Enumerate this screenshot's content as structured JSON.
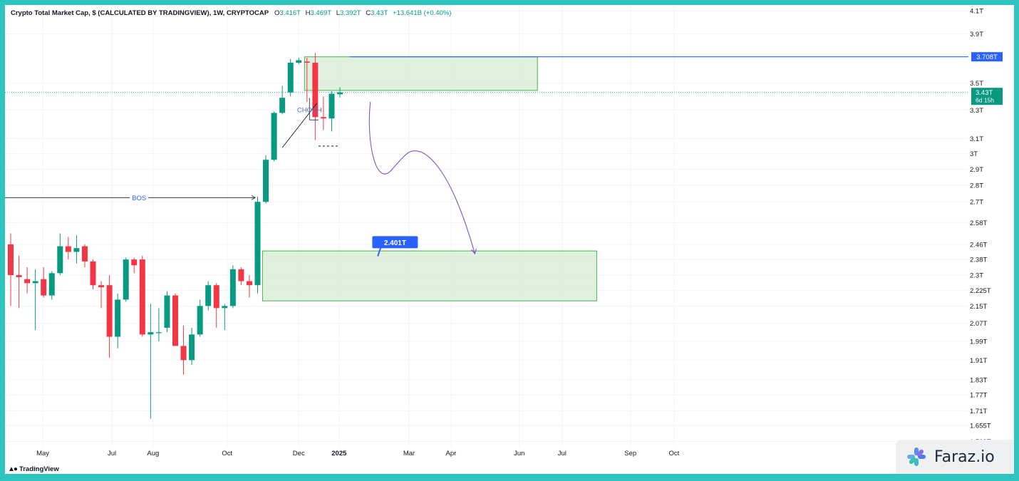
{
  "header": {
    "title": "Crypto Total Market Cap, $ (CALCULATED BY TRADINGVIEW), 1W, CRYPTOCAP",
    "o_label": "O",
    "o_value": "3.416T",
    "h_label": "H",
    "h_value": "3.469T",
    "l_label": "L",
    "l_value": "3.392T",
    "c_label": "C",
    "c_value": "3.43T",
    "change": "+13.641B (+0.40%)"
  },
  "footer": {
    "brand": "TradingView"
  },
  "watermark": {
    "text": "Faraz.io"
  },
  "colors": {
    "up": "#089981",
    "down": "#f23645",
    "zone_fill": "#d9efd6",
    "zone_stroke": "#4caf50",
    "price_line": "#26a69a",
    "level_line": "#2962ff",
    "arrow": "#7e57c2",
    "frame": "#2ec4c0"
  },
  "chart_data": {
    "type": "candlestick",
    "symbol": "CRYPTOCAP",
    "timeframe": "1W",
    "y_scale": "log",
    "ylim": [
      1.58,
      4.14
    ],
    "y_ticks": [
      {
        "label": "4.1T",
        "value": 4.1
      },
      {
        "label": "3.9T",
        "value": 3.9
      },
      {
        "label": "3.5T",
        "value": 3.5
      },
      {
        "label": "3.3T",
        "value": 3.3
      },
      {
        "label": "3.1T",
        "value": 3.1
      },
      {
        "label": "3T",
        "value": 3.0
      },
      {
        "label": "2.9T",
        "value": 2.9
      },
      {
        "label": "2.8T",
        "value": 2.8
      },
      {
        "label": "2.7T",
        "value": 2.7
      },
      {
        "label": "2.58T",
        "value": 2.58
      },
      {
        "label": "2.46T",
        "value": 2.46
      },
      {
        "label": "2.38T",
        "value": 2.38
      },
      {
        "label": "2.3T",
        "value": 2.3
      },
      {
        "label": "2.225T",
        "value": 2.225
      },
      {
        "label": "2.15T",
        "value": 2.15
      },
      {
        "label": "2.07T",
        "value": 2.07
      },
      {
        "label": "1.99T",
        "value": 1.99
      },
      {
        "label": "1.91T",
        "value": 1.91
      },
      {
        "label": "1.83T",
        "value": 1.83
      },
      {
        "label": "1.77T",
        "value": 1.77
      },
      {
        "label": "1.71T",
        "value": 1.71
      },
      {
        "label": "1.655T",
        "value": 1.655
      },
      {
        "label": "1.599T",
        "value": 1.599
      }
    ],
    "x_ticks": [
      {
        "label": "May",
        "week": 3.9
      },
      {
        "label": "Jul",
        "week": 12.3
      },
      {
        "label": "Aug",
        "week": 17.3
      },
      {
        "label": "Oct",
        "week": 26.3
      },
      {
        "label": "Dec",
        "week": 35
      },
      {
        "label": "2025",
        "week": 39.9
      },
      {
        "label": "Mar",
        "week": 48.4
      },
      {
        "label": "Apr",
        "week": 53.5
      },
      {
        "label": "Jun",
        "week": 61.8
      },
      {
        "label": "Jul",
        "week": 67
      },
      {
        "label": "Sep",
        "week": 75.3
      },
      {
        "label": "Oct",
        "week": 80.6
      }
    ],
    "candles": [
      {
        "o": 2.46,
        "h": 2.52,
        "l": 2.15,
        "c": 2.3
      },
      {
        "o": 2.3,
        "h": 2.4,
        "l": 2.14,
        "c": 2.29
      },
      {
        "o": 2.28,
        "h": 2.34,
        "l": 2.21,
        "c": 2.26
      },
      {
        "o": 2.26,
        "h": 2.33,
        "l": 2.04,
        "c": 2.27
      },
      {
        "o": 2.28,
        "h": 2.34,
        "l": 2.19,
        "c": 2.2
      },
      {
        "o": 2.2,
        "h": 2.32,
        "l": 2.18,
        "c": 2.31
      },
      {
        "o": 2.31,
        "h": 2.52,
        "l": 2.3,
        "c": 2.45
      },
      {
        "o": 2.45,
        "h": 2.5,
        "l": 2.38,
        "c": 2.42
      },
      {
        "o": 2.42,
        "h": 2.51,
        "l": 2.36,
        "c": 2.44
      },
      {
        "o": 2.45,
        "h": 2.46,
        "l": 2.34,
        "c": 2.37
      },
      {
        "o": 2.37,
        "h": 2.38,
        "l": 2.23,
        "c": 2.25
      },
      {
        "o": 2.25,
        "h": 2.27,
        "l": 2.14,
        "c": 2.24
      },
      {
        "o": 2.25,
        "h": 2.3,
        "l": 1.92,
        "c": 2.01
      },
      {
        "o": 2.01,
        "h": 2.21,
        "l": 1.96,
        "c": 2.18
      },
      {
        "o": 2.18,
        "h": 2.39,
        "l": 2.17,
        "c": 2.38
      },
      {
        "o": 2.38,
        "h": 2.39,
        "l": 2.31,
        "c": 2.35
      },
      {
        "o": 2.38,
        "h": 2.4,
        "l": 2.01,
        "c": 2.02
      },
      {
        "o": 2.02,
        "h": 2.16,
        "l": 1.68,
        "c": 2.03
      },
      {
        "o": 2.03,
        "h": 2.14,
        "l": 1.99,
        "c": 2.03
      },
      {
        "o": 2.05,
        "h": 2.22,
        "l": 2.03,
        "c": 2.2
      },
      {
        "o": 2.2,
        "h": 2.21,
        "l": 1.99,
        "c": 1.97
      },
      {
        "o": 1.97,
        "h": 2.06,
        "l": 1.85,
        "c": 1.91
      },
      {
        "o": 1.91,
        "h": 2.05,
        "l": 1.89,
        "c": 2.02
      },
      {
        "o": 2.02,
        "h": 2.18,
        "l": 2.01,
        "c": 2.15
      },
      {
        "o": 2.15,
        "h": 2.27,
        "l": 2.13,
        "c": 2.25
      },
      {
        "o": 2.25,
        "h": 2.26,
        "l": 2.05,
        "c": 2.14
      },
      {
        "o": 2.14,
        "h": 2.16,
        "l": 2.04,
        "c": 2.15
      },
      {
        "o": 2.15,
        "h": 2.35,
        "l": 2.14,
        "c": 2.33
      },
      {
        "o": 2.33,
        "h": 2.34,
        "l": 2.25,
        "c": 2.27
      },
      {
        "o": 2.27,
        "h": 2.3,
        "l": 2.19,
        "c": 2.25
      },
      {
        "o": 2.25,
        "h": 2.73,
        "l": 2.21,
        "c": 2.7
      },
      {
        "o": 2.7,
        "h": 2.99,
        "l": 2.69,
        "c": 2.96
      },
      {
        "o": 2.96,
        "h": 3.29,
        "l": 2.95,
        "c": 3.28
      },
      {
        "o": 3.28,
        "h": 3.48,
        "l": 3.27,
        "c": 3.39
      },
      {
        "o": 3.43,
        "h": 3.69,
        "l": 3.4,
        "c": 3.66
      },
      {
        "o": 3.66,
        "h": 3.7,
        "l": 3.65,
        "c": 3.68
      },
      {
        "o": 3.67,
        "h": 3.7,
        "l": 3.36,
        "c": 3.66
      },
      {
        "o": 3.66,
        "h": 3.74,
        "l": 3.09,
        "c": 3.25
      },
      {
        "o": 3.25,
        "h": 3.4,
        "l": 3.16,
        "c": 3.24
      },
      {
        "o": 3.24,
        "h": 3.44,
        "l": 3.15,
        "c": 3.42
      },
      {
        "o": 3.416,
        "h": 3.469,
        "l": 3.392,
        "c": 3.43
      }
    ],
    "zones": [
      {
        "name": "supply",
        "y_top": 3.708,
        "y_bottom": 3.445,
        "week_start": 35.7,
        "week_end": 64
      },
      {
        "name": "demand",
        "y_top": 2.425,
        "y_bottom": 2.174,
        "week_start": 30.6,
        "week_end": 71.2
      }
    ],
    "annotations": {
      "bos_label": "BOS",
      "bos_price": 2.725,
      "choch_label": "CHOCH",
      "target_label": "2.401T",
      "resistance_label": "3.708T",
      "resistance_price": 3.708,
      "current_price_label": "3.43T",
      "current_price": 3.43,
      "countdown": "6d 15h"
    }
  }
}
